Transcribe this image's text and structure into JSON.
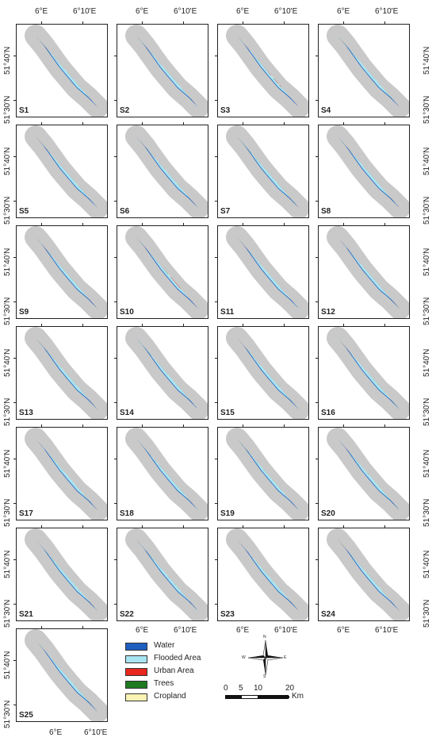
{
  "axes": {
    "lon_labels": [
      "6°E",
      "6°10'E"
    ],
    "lat_labels": [
      "51°40'N",
      "51°30'N"
    ]
  },
  "panels": [
    {
      "label": "S1",
      "scheme": "mixed-red"
    },
    {
      "label": "S2",
      "scheme": "mixed-red"
    },
    {
      "label": "S3",
      "scheme": "dense-red"
    },
    {
      "label": "S4",
      "scheme": "mixed-green"
    },
    {
      "label": "S5",
      "scheme": "mixed-green"
    },
    {
      "label": "S6",
      "scheme": "mixed-brown"
    },
    {
      "label": "S7",
      "scheme": "mixed-brown"
    },
    {
      "label": "S8",
      "scheme": "urban"
    },
    {
      "label": "S9",
      "scheme": "urban"
    },
    {
      "label": "S10",
      "scheme": "dense-red"
    },
    {
      "label": "S11",
      "scheme": "urban"
    },
    {
      "label": "S12",
      "scheme": "urban"
    },
    {
      "label": "S13",
      "scheme": "mixed-brown"
    },
    {
      "label": "S14",
      "scheme": "mixed-green"
    },
    {
      "label": "S15",
      "scheme": "mixed-green"
    },
    {
      "label": "S16",
      "scheme": "mixed-green"
    },
    {
      "label": "S17",
      "scheme": "mixed-green"
    },
    {
      "label": "S18",
      "scheme": "mixed-green"
    },
    {
      "label": "S19",
      "scheme": "mixed-green"
    },
    {
      "label": "S20",
      "scheme": "mixed-green"
    },
    {
      "label": "S21",
      "scheme": "mixed-green"
    },
    {
      "label": "S22",
      "scheme": "mixed-green"
    },
    {
      "label": "S23",
      "scheme": "mixed-green"
    },
    {
      "label": "S24",
      "scheme": "mixed-green"
    },
    {
      "label": "S25",
      "scheme": "mixed-green"
    }
  ],
  "legend": [
    {
      "label": "Water",
      "color": "#1f5fbf"
    },
    {
      "label": "Flooded Area",
      "color": "#a9e4f2"
    },
    {
      "label": "Urban Area",
      "color": "#e8281e"
    },
    {
      "label": "Trees",
      "color": "#1f7a1f"
    },
    {
      "label": "Cropland",
      "color": "#fbf3b4"
    }
  ],
  "compass": {
    "north": "N",
    "south": "S",
    "east": "E",
    "west": "W"
  },
  "scale_bar": {
    "ticks": [
      "0",
      "5",
      "10",
      "20"
    ],
    "unit": "Km"
  },
  "colors": {
    "flood": "#a9e4f2",
    "water": "#1f5fbf",
    "urban": "#e8281e",
    "trees": "#1f7a1f",
    "crop": "#fbf3b4",
    "brown": "#8a6b2e",
    "outline": "#c9c9c9"
  }
}
